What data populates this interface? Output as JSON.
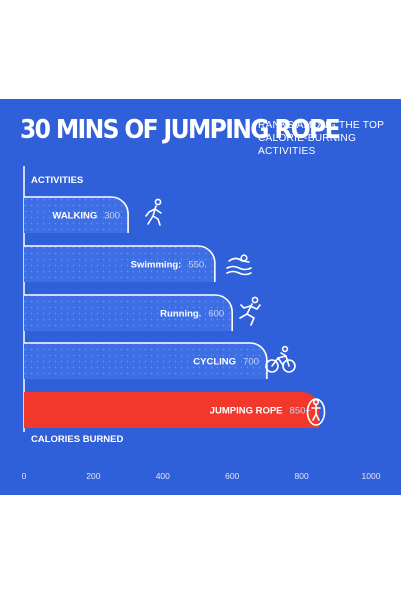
{
  "header": {
    "title": "30 MINS OF JUMPING ROPE",
    "subtitle": "RANKS AMONG THE TOP CALORIE-BURNING ACTIVITIES"
  },
  "colors": {
    "background": "#2f5fd9",
    "bar": "#3d6ee3",
    "bar_outline": "#ffffff",
    "highlight_bar": "#f2382b"
  },
  "chart_data": {
    "type": "bar",
    "orientation": "horizontal",
    "ylabel": "ACTIVITIES",
    "xlabel": "CALORIES BURNED",
    "xlim": [
      0,
      1000
    ],
    "xticks": [
      "0",
      "200",
      "400",
      "600",
      "800",
      "1000"
    ],
    "grid": false,
    "categories": [
      "WALKING",
      "Swimming:",
      "Running.",
      "CYCLING",
      "JUMPING ROPE"
    ],
    "values": [
      300,
      550,
      600,
      700,
      850
    ],
    "value_labels": [
      "300",
      "550.",
      "600",
      "700",
      "850+"
    ],
    "highlight": "JUMPING ROPE",
    "icons": [
      "walking-icon",
      "swimming-icon",
      "running-icon",
      "cycling-icon",
      "jumping-rope-icon"
    ]
  }
}
